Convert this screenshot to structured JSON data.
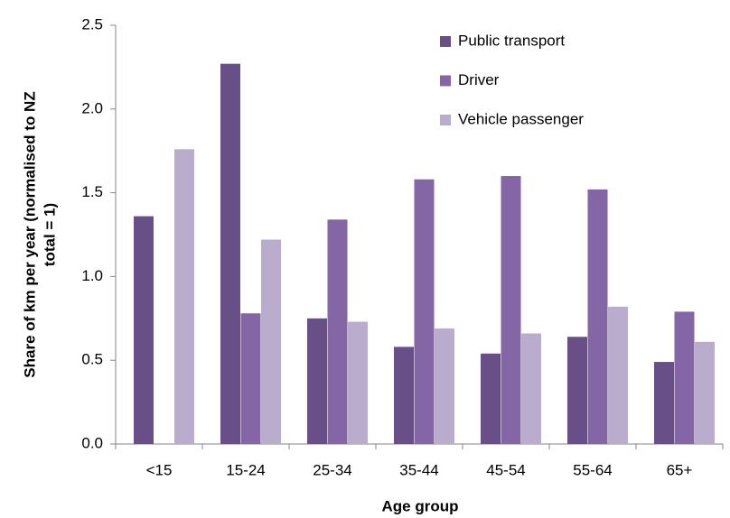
{
  "chart_data": {
    "type": "bar",
    "xlabel": "Age group",
    "ylabel": [
      "Share of km per year (normalised to NZ",
      "total = 1)"
    ],
    "categories": [
      "<15",
      "15-24",
      "25-34",
      "35-44",
      "45-54",
      "55-64",
      "65+"
    ],
    "series": [
      {
        "name": "Public transport",
        "color": "#684f88",
        "values": [
          1.36,
          2.27,
          0.75,
          0.58,
          0.54,
          0.64,
          0.49
        ]
      },
      {
        "name": "Driver",
        "color": "#8466a6",
        "values": [
          null,
          0.78,
          1.34,
          1.58,
          1.6,
          1.52,
          0.79
        ]
      },
      {
        "name": "Vehicle passenger",
        "color": "#b9accc",
        "values": [
          1.76,
          1.22,
          0.73,
          0.69,
          0.66,
          0.82,
          0.61
        ]
      }
    ],
    "ylim": [
      0,
      2.5
    ],
    "yticks": [
      {
        "value": 0,
        "label": "0.0"
      },
      0.5,
      {
        "value": 1,
        "label": "1.0"
      },
      1.5,
      {
        "value": 2,
        "label": "2.0"
      },
      2.5
    ],
    "legend": "top-right"
  }
}
